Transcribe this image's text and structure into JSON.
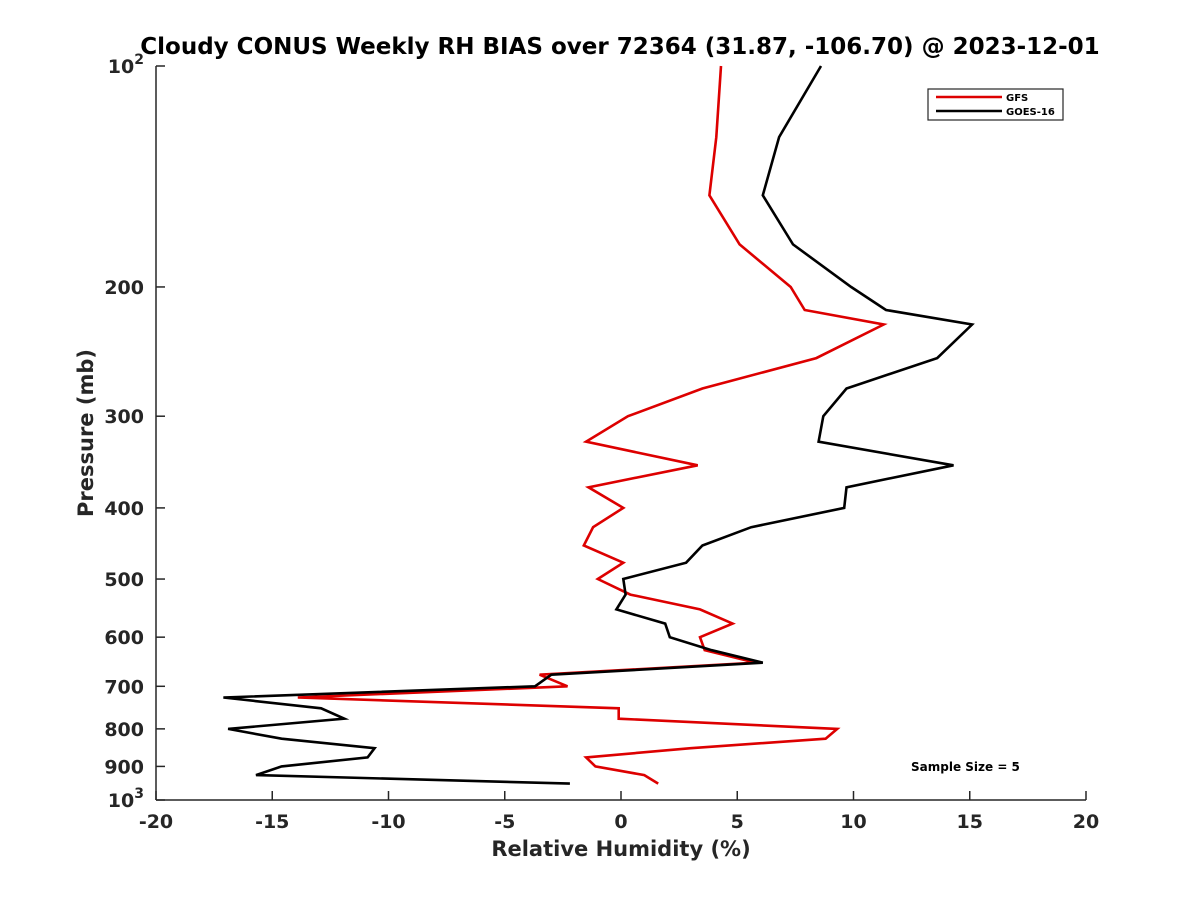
{
  "chart_data": {
    "type": "line",
    "title": "Cloudy CONUS Weekly RH BIAS over 72364 (31.87, -106.70) @ 2023-12-01",
    "xlabel": "Relative Humidity (%)",
    "ylabel": "Pressure (mb)",
    "xlim": [
      -20,
      20
    ],
    "ylim": [
      1000,
      100
    ],
    "yscale": "log",
    "y_reversed": true,
    "grid": false,
    "legend_position": "top-right",
    "x_ticks": [
      -20,
      -15,
      -10,
      -5,
      0,
      5,
      10,
      15,
      20
    ],
    "x_tick_labels": [
      "-20",
      "-15",
      "-10",
      "-5",
      "0",
      "5",
      "10",
      "15",
      "20"
    ],
    "y_ticks": [
      100,
      200,
      300,
      400,
      500,
      600,
      700,
      800,
      900,
      1000
    ],
    "y_tick_labels": [
      {
        "base": "10",
        "exp": "2"
      },
      {
        "base": "200",
        "exp": ""
      },
      {
        "base": "300",
        "exp": ""
      },
      {
        "base": "400",
        "exp": ""
      },
      {
        "base": "500",
        "exp": ""
      },
      {
        "base": "600",
        "exp": ""
      },
      {
        "base": "700",
        "exp": ""
      },
      {
        "base": "800",
        "exp": ""
      },
      {
        "base": "900",
        "exp": ""
      },
      {
        "base": "10",
        "exp": "3"
      }
    ],
    "annotation": "Sample Size = 5",
    "series": [
      {
        "name": "GFS",
        "color": "#dd0000",
        "points": [
          {
            "x": 4.3,
            "y": 100
          },
          {
            "x": 4.1,
            "y": 125
          },
          {
            "x": 3.8,
            "y": 150
          },
          {
            "x": 5.1,
            "y": 175
          },
          {
            "x": 7.3,
            "y": 200
          },
          {
            "x": 7.9,
            "y": 215
          },
          {
            "x": 11.3,
            "y": 225
          },
          {
            "x": 8.4,
            "y": 250
          },
          {
            "x": 3.5,
            "y": 275
          },
          {
            "x": 0.3,
            "y": 300
          },
          {
            "x": -1.5,
            "y": 325
          },
          {
            "x": 3.3,
            "y": 350
          },
          {
            "x": -1.4,
            "y": 375
          },
          {
            "x": 0.1,
            "y": 400
          },
          {
            "x": -1.2,
            "y": 425
          },
          {
            "x": -1.6,
            "y": 450
          },
          {
            "x": 0.1,
            "y": 475
          },
          {
            "x": -1.0,
            "y": 500
          },
          {
            "x": 0.4,
            "y": 525
          },
          {
            "x": 3.4,
            "y": 550
          },
          {
            "x": 4.8,
            "y": 575
          },
          {
            "x": 3.4,
            "y": 600
          },
          {
            "x": 3.6,
            "y": 625
          },
          {
            "x": 5.8,
            "y": 650
          },
          {
            "x": -3.5,
            "y": 675
          },
          {
            "x": -2.3,
            "y": 700
          },
          {
            "x": -13.9,
            "y": 725
          },
          {
            "x": -0.1,
            "y": 750
          },
          {
            "x": -0.1,
            "y": 775
          },
          {
            "x": 9.3,
            "y": 800
          },
          {
            "x": 8.8,
            "y": 825
          },
          {
            "x": 3.0,
            "y": 850
          },
          {
            "x": -1.5,
            "y": 875
          },
          {
            "x": -1.1,
            "y": 900
          },
          {
            "x": 1.0,
            "y": 925
          },
          {
            "x": 1.6,
            "y": 950
          }
        ]
      },
      {
        "name": "GOES-16",
        "color": "#000000",
        "points": [
          {
            "x": 8.6,
            "y": 100
          },
          {
            "x": 6.8,
            "y": 125
          },
          {
            "x": 6.1,
            "y": 150
          },
          {
            "x": 7.4,
            "y": 175
          },
          {
            "x": 9.9,
            "y": 200
          },
          {
            "x": 11.4,
            "y": 215
          },
          {
            "x": 15.1,
            "y": 225
          },
          {
            "x": 13.6,
            "y": 250
          },
          {
            "x": 9.7,
            "y": 275
          },
          {
            "x": 8.7,
            "y": 300
          },
          {
            "x": 8.5,
            "y": 325
          },
          {
            "x": 14.3,
            "y": 350
          },
          {
            "x": 9.7,
            "y": 375
          },
          {
            "x": 9.6,
            "y": 400
          },
          {
            "x": 5.6,
            "y": 425
          },
          {
            "x": 3.5,
            "y": 450
          },
          {
            "x": 2.8,
            "y": 475
          },
          {
            "x": 0.1,
            "y": 500
          },
          {
            "x": 0.2,
            "y": 525
          },
          {
            "x": -0.2,
            "y": 550
          },
          {
            "x": 1.9,
            "y": 575
          },
          {
            "x": 2.1,
            "y": 600
          },
          {
            "x": 3.9,
            "y": 625
          },
          {
            "x": 6.1,
            "y": 650
          },
          {
            "x": -3.0,
            "y": 675
          },
          {
            "x": -3.7,
            "y": 700
          },
          {
            "x": -17.1,
            "y": 725
          },
          {
            "x": -12.9,
            "y": 750
          },
          {
            "x": -11.9,
            "y": 775
          },
          {
            "x": -16.9,
            "y": 800
          },
          {
            "x": -14.6,
            "y": 825
          },
          {
            "x": -10.6,
            "y": 850
          },
          {
            "x": -10.9,
            "y": 875
          },
          {
            "x": -14.6,
            "y": 900
          },
          {
            "x": -15.7,
            "y": 925
          },
          {
            "x": -2.2,
            "y": 950
          }
        ]
      }
    ]
  }
}
